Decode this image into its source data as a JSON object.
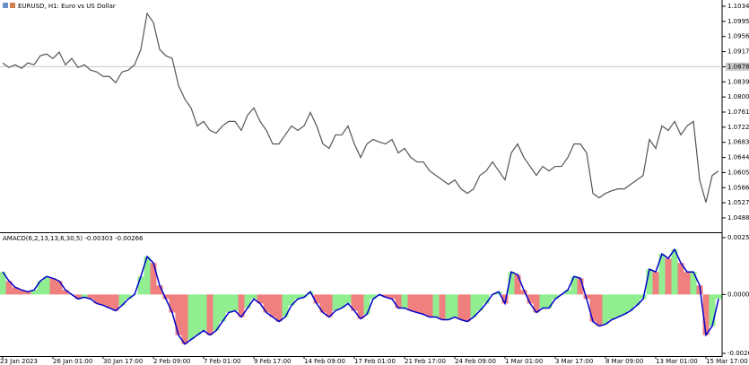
{
  "chart_data": [
    {
      "type": "line",
      "title": "EURUSD, H1:  Euro vs US Dollar",
      "color": "#555555",
      "hline": 1.0878,
      "ylim": [
        1.04532,
        1.10502
      ],
      "yticks": [
        {
          "value": 1.1034,
          "label": "1.10340"
        },
        {
          "value": 1.0995,
          "label": "1.09950"
        },
        {
          "value": 1.0956,
          "label": "1.09560"
        },
        {
          "value": 1.0917,
          "label": "1.09170"
        },
        {
          "value": 1.0878,
          "label": "1.08780"
        },
        {
          "value": 1.0839,
          "label": "1.08390"
        },
        {
          "value": 1.08,
          "label": "1.08000"
        },
        {
          "value": 1.0761,
          "label": "1.07610"
        },
        {
          "value": 1.0722,
          "label": "1.07220"
        },
        {
          "value": 1.0683,
          "label": "1.06830"
        },
        {
          "value": 1.0644,
          "label": "1.06440"
        },
        {
          "value": 1.0605,
          "label": "1.06050"
        },
        {
          "value": 1.0566,
          "label": "1.05660"
        },
        {
          "value": 1.0527,
          "label": "1.05270"
        },
        {
          "value": 1.0488,
          "label": "1.04880"
        }
      ],
      "values": [
        1.08877,
        1.08761,
        1.08831,
        1.08738,
        1.08877,
        1.08831,
        1.09063,
        1.09109,
        1.08993,
        1.09156,
        1.08831,
        1.08993,
        1.08761,
        1.08831,
        1.08692,
        1.08645,
        1.08529,
        1.08529,
        1.08367,
        1.08645,
        1.08692,
        1.08831,
        1.09225,
        1.10154,
        1.09922,
        1.09225,
        1.09063,
        1.08993,
        1.08297,
        1.07949,
        1.07717,
        1.07253,
        1.07369,
        1.07137,
        1.07067,
        1.07253,
        1.07369,
        1.07369,
        1.07137,
        1.07531,
        1.07717,
        1.07369,
        1.07137,
        1.06788,
        1.06788,
        1.07021,
        1.07253,
        1.07137,
        1.07253,
        1.07601,
        1.07253,
        1.06788,
        1.06672,
        1.07021,
        1.07021,
        1.07253,
        1.06788,
        1.0644,
        1.06788,
        1.06904,
        1.06835,
        1.06788,
        1.06904,
        1.06556,
        1.06672,
        1.0644,
        1.06324,
        1.06324,
        1.06092,
        1.05976,
        1.0586,
        1.05744,
        1.0586,
        1.05628,
        1.05512,
        1.05628,
        1.05976,
        1.06092,
        1.06324,
        1.06092,
        1.0586,
        1.06556,
        1.06788,
        1.0644,
        1.06208,
        1.05976,
        1.06208,
        1.06092,
        1.06208,
        1.06208,
        1.0644,
        1.06788,
        1.06788,
        1.06556,
        1.05512,
        1.05396,
        1.05512,
        1.05581,
        1.05628,
        1.05628,
        1.05744,
        1.0586,
        1.05976,
        1.06904,
        1.06672,
        1.07253,
        1.07137,
        1.07369,
        1.07021,
        1.07253,
        1.07369,
        1.0586,
        1.0528,
        1.05976,
        1.06092
      ]
    },
    {
      "type": "bar",
      "title": "AMACD(6,2,13,13,6,30,5) -0.00303 -0.00266",
      "up_color": "#90ee90",
      "down_color": "#f08080",
      "line_color": "#0000cc",
      "ylim": [
        -0.00269,
        0.00272
      ],
      "yticks": [
        0.00252,
        {
          "value": 0,
          "label": "0.00000"
        },
        -0.00261
      ],
      "categories": [
        "23 Jan 2023",
        null,
        null,
        null,
        null,
        null,
        null,
        null,
        "26 Jan 01:00",
        null,
        null,
        null,
        null,
        null,
        null,
        null,
        "30 Jan 17:00",
        null,
        null,
        null,
        null,
        null,
        null,
        null,
        "2 Feb 09:00",
        null,
        null,
        null,
        null,
        null,
        null,
        null,
        "7 Feb 01:00",
        null,
        null,
        null,
        null,
        null,
        null,
        null,
        "9 Feb 17:00",
        null,
        null,
        null,
        null,
        null,
        null,
        null,
        "14 Feb 09:00",
        null,
        null,
        null,
        null,
        null,
        null,
        null,
        "17 Feb 01:00",
        null,
        null,
        null,
        null,
        null,
        null,
        null,
        "21 Feb 17:00",
        null,
        null,
        null,
        null,
        null,
        null,
        null,
        "24 Feb 09:00",
        null,
        null,
        null,
        null,
        null,
        null,
        null,
        "1 Mar 01:00",
        null,
        null,
        null,
        null,
        null,
        null,
        null,
        "3 Mar 17:00",
        null,
        null,
        null,
        null,
        null,
        null,
        null,
        "8 Mar 09:00",
        null,
        null,
        null,
        null,
        null,
        null,
        null,
        "13 Mar 01:00",
        null,
        null,
        null,
        null,
        null,
        null,
        null,
        "15 Mar 17:00",
        null,
        null
      ],
      "values": [
        0.001,
        0.0006,
        0.00032,
        0.0002,
        0.00012,
        0.0002,
        0.0006,
        0.0008,
        0.00072,
        0.0006,
        0.0002,
        0,
        -0.0002,
        -0.00012,
        -0.0002,
        -0.0004,
        -0.00048,
        -0.0006,
        -0.00072,
        -0.00048,
        -0.0002,
        0,
        0.0008,
        0.00168,
        0.0014,
        0.0004,
        -0.0002,
        -0.0008,
        -0.0018,
        -0.0022,
        -0.002,
        -0.0018,
        -0.0016,
        -0.0018,
        -0.0016,
        -0.0012,
        -0.0008,
        -0.00072,
        -0.001,
        -0.0006,
        -0.0002,
        -0.0004,
        -0.0008,
        -0.001,
        -0.0012,
        -0.001,
        -0.00048,
        -0.0002,
        -0.00012,
        0.00012,
        -0.0004,
        -0.0008,
        -0.001,
        -0.00072,
        -0.0006,
        -0.0004,
        -0.00072,
        -0.00108,
        -0.00088,
        -0.0002,
        0,
        -0.00012,
        -0.0002,
        -0.0006,
        -0.0006,
        -0.00072,
        -0.0008,
        -0.00088,
        -0.001,
        -0.001,
        -0.00112,
        -0.00112,
        -0.001,
        -0.00112,
        -0.0012,
        -0.001,
        -0.00072,
        -0.0004,
        0,
        0.00012,
        -0.0004,
        0.001,
        0.00088,
        0.0002,
        -0.0004,
        -0.0008,
        -0.0006,
        -0.0006,
        -0.0002,
        0,
        0.0002,
        0.0008,
        0.00072,
        -0.0002,
        -0.0012,
        -0.0014,
        -0.00132,
        -0.00112,
        -0.001,
        -0.00088,
        -0.00072,
        -0.00048,
        -0.0002,
        0.00112,
        0.001,
        0.0018,
        0.0016,
        0.002,
        0.0014,
        0.001,
        0.001,
        0.0004,
        -0.0018,
        -0.0014,
        -0.0002
      ]
    }
  ]
}
